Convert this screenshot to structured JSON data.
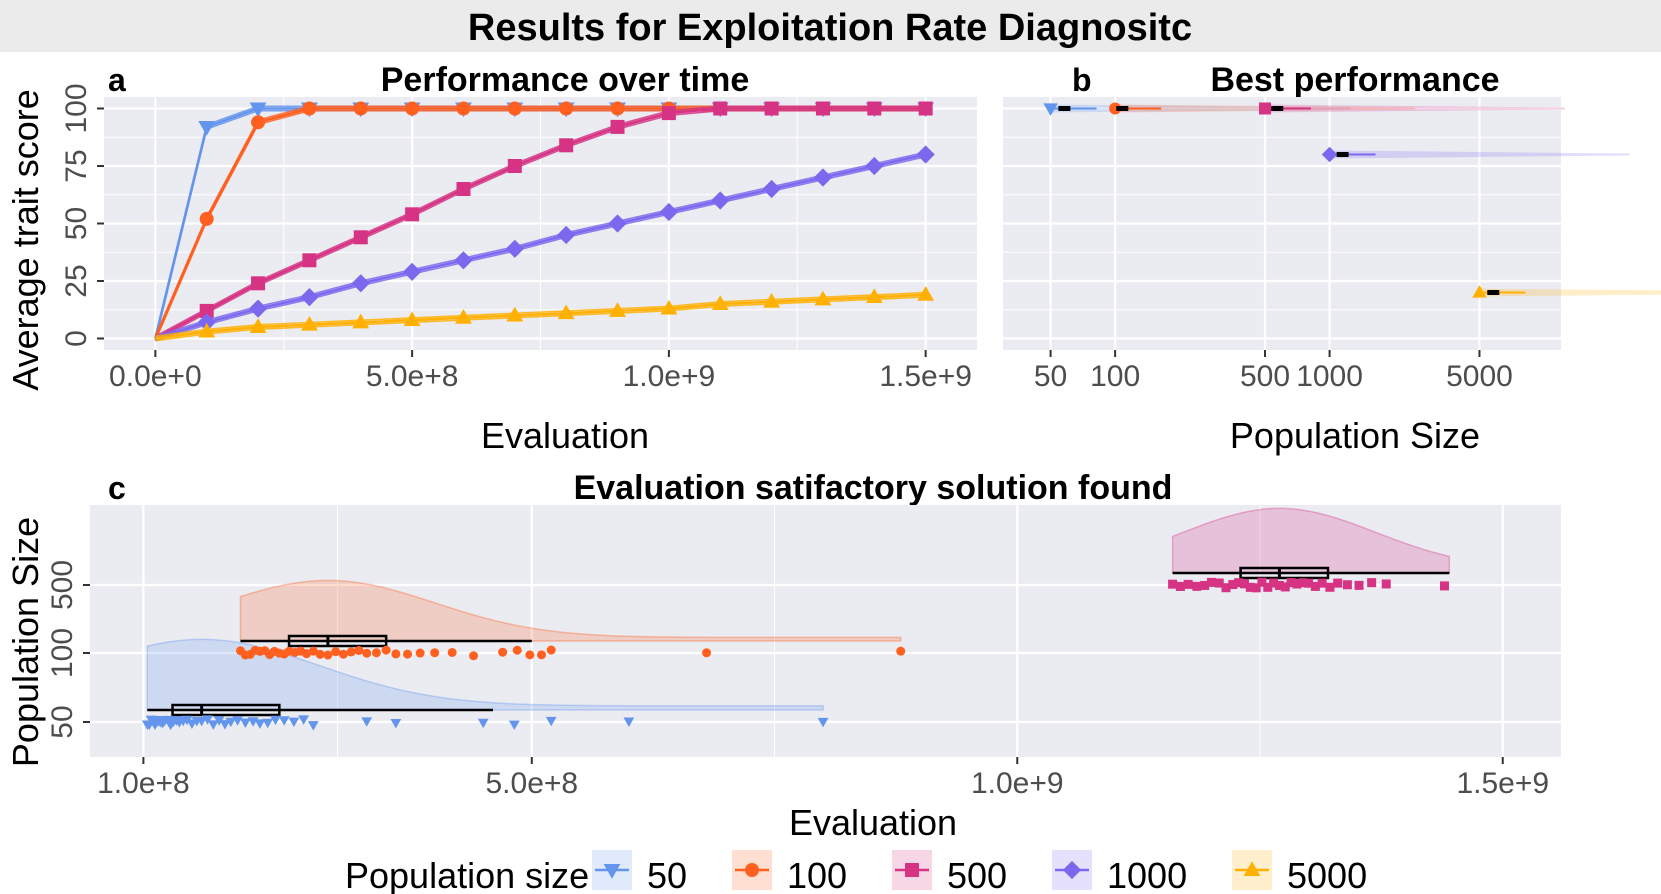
{
  "suptitle": "Results for Exploitation Rate Diagnositc",
  "colors": {
    "50": "#6495ED",
    "100": "#FF5F1F",
    "500": "#D63384",
    "1000": "#7B68EE",
    "5000": "#FFB000",
    "panel_bg": "#EBEBF2",
    "grid": "#FFFFFF"
  },
  "chart_data": [
    {
      "panel": "a",
      "type": "line",
      "title": "Performance over time",
      "xlabel": "Evaluation",
      "ylabel": "Average trait score",
      "xlim": [
        -100000000.0,
        1600000000.0
      ],
      "ylim": [
        -5,
        105
      ],
      "xticks": [
        0,
        500000000,
        1000000000,
        1500000000
      ],
      "xtick_labels": [
        "0.0e+0",
        "5.0e+8",
        "1.0e+9",
        "1.5e+9"
      ],
      "yticks": [
        0,
        25,
        50,
        75,
        100
      ],
      "ytick_labels": [
        "0",
        "25",
        "50",
        "75",
        "100"
      ],
      "series": [
        {
          "name": "50",
          "marker": "triangle-down",
          "x": [
            0,
            100000000,
            200000000,
            300000000,
            400000000,
            500000000,
            600000000,
            700000000,
            800000000,
            900000000,
            1000000000,
            1100000000,
            1200000000,
            1300000000,
            1400000000,
            1500000000
          ],
          "y": [
            0,
            92,
            100,
            100,
            100,
            100,
            100,
            100,
            100,
            100,
            100,
            100,
            100,
            100,
            100,
            100
          ]
        },
        {
          "name": "100",
          "marker": "circle",
          "x": [
            0,
            100000000,
            200000000,
            300000000,
            400000000,
            500000000,
            600000000,
            700000000,
            800000000,
            900000000,
            1000000000,
            1100000000,
            1200000000,
            1300000000,
            1400000000,
            1500000000
          ],
          "y": [
            0,
            52,
            94,
            100,
            100,
            100,
            100,
            100,
            100,
            100,
            100,
            100,
            100,
            100,
            100,
            100
          ]
        },
        {
          "name": "500",
          "marker": "square",
          "x": [
            0,
            100000000,
            200000000,
            300000000,
            400000000,
            500000000,
            600000000,
            700000000,
            800000000,
            900000000,
            1000000000,
            1100000000,
            1200000000,
            1300000000,
            1400000000,
            1500000000
          ],
          "y": [
            0,
            12,
            24,
            34,
            44,
            54,
            65,
            75,
            84,
            92,
            98,
            100,
            100,
            100,
            100,
            100
          ]
        },
        {
          "name": "1000",
          "marker": "diamond",
          "x": [
            0,
            100000000,
            200000000,
            300000000,
            400000000,
            500000000,
            600000000,
            700000000,
            800000000,
            900000000,
            1000000000,
            1100000000,
            1200000000,
            1300000000,
            1400000000,
            1500000000
          ],
          "y": [
            0,
            7,
            13,
            18,
            24,
            29,
            34,
            39,
            45,
            50,
            55,
            60,
            65,
            70,
            75,
            80
          ]
        },
        {
          "name": "5000",
          "marker": "triangle-up",
          "x": [
            0,
            100000000,
            200000000,
            300000000,
            400000000,
            500000000,
            600000000,
            700000000,
            800000000,
            900000000,
            1000000000,
            1100000000,
            1200000000,
            1300000000,
            1400000000,
            1500000000
          ],
          "y": [
            0,
            3,
            5,
            6,
            7,
            8,
            9,
            10,
            11,
            12,
            13,
            15,
            16,
            17,
            18,
            19
          ]
        }
      ]
    },
    {
      "panel": "b",
      "type": "scatter",
      "title": "Best performance",
      "xlabel": "Population Size",
      "x_scale": "log10",
      "xlim": [
        30,
        12000
      ],
      "ylim": [
        -5,
        105
      ],
      "xticks": [
        50,
        100,
        500,
        1000,
        5000
      ],
      "xtick_labels": [
        "50",
        "100",
        "500",
        "1000",
        "5000"
      ],
      "series": [
        {
          "name": "50",
          "marker": "triangle-down",
          "x": 50,
          "y": 100,
          "median_x": 58
        },
        {
          "name": "100",
          "marker": "circle",
          "x": 100,
          "y": 100,
          "median_x": 108
        },
        {
          "name": "500",
          "marker": "square",
          "x": 500,
          "y": 100,
          "median_x": 570
        },
        {
          "name": "1000",
          "marker": "diamond",
          "x": 1000,
          "y": 80,
          "median_x": 1150
        },
        {
          "name": "5000",
          "marker": "triangle-up",
          "x": 5000,
          "y": 20,
          "median_x": 5800
        }
      ]
    },
    {
      "panel": "c",
      "type": "raincloud",
      "title": "Evaluation satifactory solution found",
      "xlabel": "Evaluation",
      "ylabel": "Population Size",
      "xlim": [
        45000000,
        1560000000
      ],
      "xticks": [
        100000000,
        500000000,
        1000000000,
        1500000000
      ],
      "xtick_labels": [
        "1.0e+8",
        "5.0e+8",
        "1.0e+9",
        "1.5e+9"
      ],
      "ytick_labels": [
        "50",
        "100",
        "500"
      ],
      "series": [
        {
          "name": "50",
          "marker": "triangle-down",
          "points": [
            104000000,
            106000000,
            108000000,
            110000000,
            112000000,
            114000000,
            116000000,
            118000000,
            120000000,
            122000000,
            125000000,
            128000000,
            131000000,
            134000000,
            137000000,
            141000000,
            145000000,
            150000000,
            155000000,
            160000000,
            166000000,
            172000000,
            178000000,
            184000000,
            190000000,
            197000000,
            205000000,
            213000000,
            220000000,
            228000000,
            236000000,
            245000000,
            255000000,
            265000000,
            275000000,
            330000000,
            360000000,
            450000000,
            482000000,
            520000000,
            600000000,
            800000000
          ],
          "whisker": [
            104000000,
            460000000
          ],
          "q1": 130000000,
          "median": 160000000,
          "q3": 240000000,
          "density_end": 800000000
        },
        {
          "name": "100",
          "marker": "circle",
          "points": [
            200000000,
            205000000,
            210000000,
            215000000,
            220000000,
            225000000,
            230000000,
            235000000,
            240000000,
            245000000,
            250000000,
            256000000,
            262000000,
            268000000,
            275000000,
            282000000,
            290000000,
            298000000,
            306000000,
            314000000,
            322000000,
            330000000,
            340000000,
            350000000,
            360000000,
            372000000,
            385000000,
            400000000,
            418000000,
            440000000,
            470000000,
            485000000,
            498000000,
            510000000,
            520000000,
            680000000,
            880000000
          ],
          "whisker": [
            200000000,
            500000000
          ],
          "q1": 250000000,
          "median": 290000000,
          "q3": 350000000,
          "density_end": 880000000
        },
        {
          "name": "500",
          "marker": "square",
          "points": [
            1160000000,
            1168000000,
            1176000000,
            1185000000,
            1193000000,
            1200000000,
            1208000000,
            1215000000,
            1222000000,
            1228000000,
            1234000000,
            1240000000,
            1246000000,
            1252000000,
            1258000000,
            1264000000,
            1270000000,
            1276000000,
            1282000000,
            1288000000,
            1294000000,
            1300000000,
            1307000000,
            1314000000,
            1322000000,
            1330000000,
            1340000000,
            1352000000,
            1365000000,
            1380000000,
            1440000000
          ],
          "whisker": [
            1160000000,
            1445000000
          ],
          "q1": 1230000000,
          "median": 1270000000,
          "q3": 1320000000,
          "density_end": 1445000000
        }
      ]
    }
  ],
  "panel_labels": {
    "a": "a",
    "b": "b",
    "c": "c"
  },
  "legend": {
    "title": "Population size",
    "entries": [
      {
        "label": "50",
        "marker": "triangle-down"
      },
      {
        "label": "100",
        "marker": "circle"
      },
      {
        "label": "500",
        "marker": "square"
      },
      {
        "label": "1000",
        "marker": "diamond"
      },
      {
        "label": "5000",
        "marker": "triangle-up"
      }
    ]
  }
}
